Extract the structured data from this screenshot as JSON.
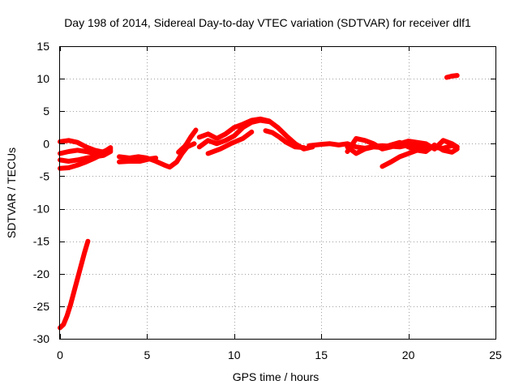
{
  "chart_data": {
    "type": "scatter",
    "title": "Day 198 of 2014, Sidereal Day-to-day VTEC variation (SDTVAR) for receiver dlf1",
    "xlabel": "GPS time / hours",
    "ylabel": "SDTVAR / TECUs",
    "xlim": [
      0,
      25
    ],
    "ylim": [
      -30,
      15
    ],
    "xticks": [
      0,
      5,
      10,
      15,
      20,
      25
    ],
    "yticks": [
      -30,
      -25,
      -20,
      -15,
      -10,
      -5,
      0,
      5,
      10,
      15
    ],
    "grid": true,
    "color": "#ff0000",
    "series": [
      {
        "name": "arc-steep-rise",
        "points": [
          [
            0.0,
            -28.3
          ],
          [
            0.2,
            -27.8
          ],
          [
            0.4,
            -26.5
          ],
          [
            0.6,
            -24.8
          ],
          [
            0.8,
            -22.8
          ],
          [
            1.0,
            -20.8
          ],
          [
            1.2,
            -18.8
          ],
          [
            1.4,
            -16.8
          ],
          [
            1.6,
            -15.0
          ]
        ]
      },
      {
        "name": "arc-a",
        "points": [
          [
            0.0,
            0.3
          ],
          [
            0.5,
            0.5
          ],
          [
            1.0,
            0.2
          ],
          [
            1.5,
            -0.5
          ],
          [
            2.0,
            -1.0
          ],
          [
            2.5,
            -1.3
          ],
          [
            2.9,
            -0.6
          ]
        ]
      },
      {
        "name": "arc-b",
        "points": [
          [
            0.0,
            -1.5
          ],
          [
            0.5,
            -1.2
          ],
          [
            1.0,
            -1.0
          ],
          [
            1.5,
            -1.2
          ],
          [
            2.0,
            -1.5
          ],
          [
            2.5,
            -1.2
          ],
          [
            2.9,
            -0.8
          ]
        ]
      },
      {
        "name": "arc-c",
        "points": [
          [
            0.0,
            -2.5
          ],
          [
            0.5,
            -2.7
          ],
          [
            1.0,
            -2.5
          ],
          [
            1.5,
            -2.2
          ],
          [
            2.0,
            -2.0
          ],
          [
            2.5,
            -1.8
          ],
          [
            2.9,
            -1.2
          ]
        ]
      },
      {
        "name": "arc-d",
        "points": [
          [
            0.0,
            -3.8
          ],
          [
            0.5,
            -3.7
          ],
          [
            1.0,
            -3.3
          ],
          [
            1.5,
            -2.8
          ],
          [
            2.0,
            -2.2
          ],
          [
            2.5,
            -1.5
          ],
          [
            2.9,
            -1.0
          ]
        ]
      },
      {
        "name": "arc-e",
        "points": [
          [
            3.4,
            -2.0
          ],
          [
            4.0,
            -2.2
          ],
          [
            4.5,
            -2.0
          ],
          [
            5.0,
            -2.2
          ],
          [
            5.5,
            -2.7
          ],
          [
            6.0,
            -3.3
          ],
          [
            6.3,
            -3.6
          ],
          [
            6.7,
            -2.8
          ],
          [
            7.0,
            -1.5
          ],
          [
            7.3,
            -0.5
          ],
          [
            7.7,
            0.0
          ]
        ]
      },
      {
        "name": "arc-f",
        "points": [
          [
            3.4,
            -2.8
          ],
          [
            4.0,
            -2.7
          ],
          [
            4.6,
            -2.7
          ],
          [
            5.2,
            -2.3
          ],
          [
            5.5,
            -2.2
          ]
        ]
      },
      {
        "name": "arc-g",
        "points": [
          [
            6.8,
            -1.3
          ],
          [
            7.2,
            -0.3
          ],
          [
            7.5,
            1.0
          ],
          [
            7.8,
            2.1
          ]
        ]
      },
      {
        "name": "arc-h",
        "points": [
          [
            8.0,
            -0.5
          ],
          [
            8.5,
            0.5
          ],
          [
            9.0,
            0.0
          ],
          [
            9.5,
            0.5
          ],
          [
            10.0,
            1.2
          ],
          [
            10.5,
            2.5
          ],
          [
            11.0,
            3.3
          ],
          [
            11.5,
            3.6
          ],
          [
            12.0,
            3.4
          ]
        ]
      },
      {
        "name": "arc-i",
        "points": [
          [
            8.0,
            1.0
          ],
          [
            8.5,
            1.5
          ],
          [
            9.0,
            0.8
          ],
          [
            9.5,
            1.5
          ],
          [
            10.0,
            2.5
          ],
          [
            10.5,
            3.0
          ],
          [
            11.0,
            3.6
          ],
          [
            11.5,
            3.8
          ],
          [
            12.0,
            3.5
          ],
          [
            12.5,
            2.5
          ],
          [
            13.0,
            1.2
          ],
          [
            13.5,
            0.0
          ],
          [
            14.0,
            -0.8
          ],
          [
            14.5,
            -0.5
          ]
        ]
      },
      {
        "name": "arc-j",
        "points": [
          [
            8.5,
            -1.5
          ],
          [
            9.2,
            -0.8
          ],
          [
            9.8,
            0.0
          ],
          [
            10.5,
            0.8
          ],
          [
            11.0,
            1.8
          ]
        ]
      },
      {
        "name": "arc-k",
        "points": [
          [
            11.8,
            2.0
          ],
          [
            12.2,
            1.7
          ],
          [
            12.6,
            1.0
          ],
          [
            13.0,
            0.2
          ],
          [
            13.5,
            -0.5
          ],
          [
            14.0,
            -0.6
          ]
        ]
      },
      {
        "name": "arc-l",
        "points": [
          [
            14.3,
            -0.3
          ],
          [
            15.0,
            -0.1
          ],
          [
            15.5,
            0.0
          ],
          [
            16.0,
            -0.2
          ],
          [
            16.5,
            0.0
          ],
          [
            17.0,
            -0.5
          ],
          [
            17.5,
            -0.7
          ],
          [
            18.0,
            -0.4
          ],
          [
            18.5,
            -0.3
          ],
          [
            19.0,
            -0.4
          ],
          [
            19.5,
            -0.5
          ],
          [
            20.0,
            -0.2
          ],
          [
            20.5,
            -0.5
          ],
          [
            21.0,
            -0.3
          ],
          [
            21.5,
            -0.6
          ],
          [
            22.0,
            -0.7
          ],
          [
            22.5,
            -0.3
          ],
          [
            22.8,
            -0.5
          ]
        ]
      },
      {
        "name": "arc-m",
        "points": [
          [
            16.5,
            -1.2
          ],
          [
            17.0,
            0.8
          ],
          [
            17.5,
            0.5
          ],
          [
            18.0,
            0.0
          ],
          [
            18.5,
            -0.8
          ],
          [
            19.0,
            -0.5
          ],
          [
            19.5,
            0.0
          ],
          [
            20.0,
            0.4
          ],
          [
            20.5,
            0.2
          ],
          [
            21.0,
            0.0
          ],
          [
            21.5,
            -0.8
          ],
          [
            22.0,
            0.5
          ],
          [
            22.5,
            0.0
          ],
          [
            22.8,
            -0.5
          ]
        ]
      },
      {
        "name": "arc-n",
        "points": [
          [
            16.5,
            -0.5
          ],
          [
            17.0,
            -1.5
          ],
          [
            17.5,
            -0.8
          ],
          [
            18.0,
            -0.5
          ],
          [
            18.5,
            -0.6
          ],
          [
            19.0,
            -0.2
          ],
          [
            19.5,
            0.2
          ],
          [
            20.0,
            -0.5
          ],
          [
            20.5,
            -1.0
          ],
          [
            21.0,
            -1.2
          ],
          [
            21.5,
            -0.2
          ],
          [
            22.0,
            -1.0
          ],
          [
            22.5,
            -1.3
          ],
          [
            22.8,
            -0.8
          ]
        ]
      },
      {
        "name": "arc-o",
        "points": [
          [
            18.5,
            -3.5
          ],
          [
            19.0,
            -2.8
          ],
          [
            19.5,
            -2.0
          ],
          [
            20.0,
            -1.5
          ],
          [
            20.5,
            -1.0
          ],
          [
            21.0,
            -0.8
          ]
        ]
      },
      {
        "name": "arc-p",
        "points": [
          [
            22.2,
            10.2
          ],
          [
            22.5,
            10.4
          ],
          [
            22.8,
            10.5
          ]
        ]
      }
    ]
  }
}
